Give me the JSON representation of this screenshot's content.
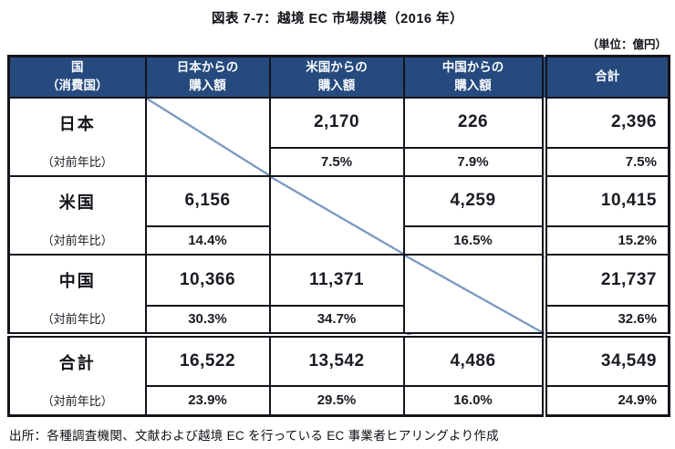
{
  "title": "図表 7-7：越境 EC 市場規模（2016 年）",
  "unit_note": "（単位：億円）",
  "source": "出所：各種調査機関、文献および越境 EC を行っている EC 事業者ヒアリングより作成",
  "yoy_label": "（対前年比）",
  "header": {
    "country_l1": "国",
    "country_l2": "（消費国）",
    "japan_l1": "日本からの",
    "japan_l2": "購入額",
    "usa_l1": "米国からの",
    "usa_l2": "購入額",
    "china_l1": "中国からの",
    "china_l2": "購入額",
    "total": "合計"
  },
  "rows": [
    {
      "label": "日本",
      "from_japan": null,
      "from_usa": {
        "value": "2,170",
        "yoy": "7.5%"
      },
      "from_china": {
        "value": "226",
        "yoy": "7.9%"
      },
      "total": {
        "value": "2,396",
        "yoy": "7.5%"
      }
    },
    {
      "label": "米国",
      "from_japan": {
        "value": "6,156",
        "yoy": "14.4%"
      },
      "from_usa": null,
      "from_china": {
        "value": "4,259",
        "yoy": "16.5%"
      },
      "total": {
        "value": "10,415",
        "yoy": "15.2%"
      }
    },
    {
      "label": "中国",
      "from_japan": {
        "value": "10,366",
        "yoy": "30.3%"
      },
      "from_usa": {
        "value": "11,371",
        "yoy": "34.7%"
      },
      "from_china": null,
      "total": {
        "value": "21,737",
        "yoy": "32.6%"
      }
    },
    {
      "label": "合計",
      "from_japan": {
        "value": "16,522",
        "yoy": "23.9%"
      },
      "from_usa": {
        "value": "13,542",
        "yoy": "29.5%"
      },
      "from_china": {
        "value": "4,486",
        "yoy": "16.0%"
      },
      "total": {
        "value": "34,549",
        "yoy": "24.9%"
      }
    }
  ],
  "colors": {
    "header_bg": "#264a7d",
    "header_text": "#fafcff",
    "diagonal_line": "#7e9cc6",
    "border": "#14141c"
  }
}
